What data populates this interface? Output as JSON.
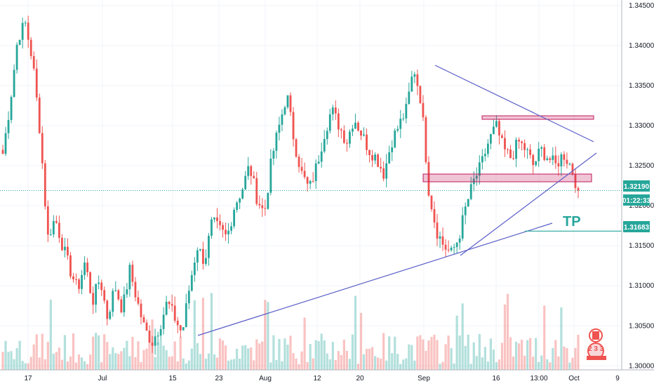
{
  "chart_data": {
    "type": "candlestick",
    "symbol_pair_flags": [
      "CA",
      "US"
    ],
    "y_axis": {
      "position": "right",
      "ylim": [
        1.2995,
        1.3457
      ],
      "ticks": [
        "1.34500",
        "1.34000",
        "1.33500",
        "1.33000",
        "1.32500",
        "1.32000",
        "1.31500",
        "1.31000",
        "1.30500",
        "1.30000"
      ]
    },
    "x_axis": {
      "ticks": [
        "17",
        "Jul",
        "15",
        "23",
        "Aug",
        "12",
        "20",
        "Sep",
        "16",
        "13:00",
        "Oct",
        "9"
      ]
    },
    "current_price": {
      "label": "1.32190",
      "value": 1.3219,
      "color": "#26a69a"
    },
    "countdown": {
      "label": "01:22:33",
      "color": "#26a69a"
    },
    "tp_level": {
      "label": "1.31683",
      "value": 1.31683,
      "text": "TP",
      "color": "#26a69a"
    },
    "colors": {
      "up": "#26a69a",
      "down": "#ef5350",
      "trendline": "#5b5fc7",
      "zone": "#c2185b"
    },
    "trendlines": [
      {
        "name": "upper-descending",
        "from": [
          1.3373
        ],
        "to": [
          1.3277
        ]
      },
      {
        "name": "lower-ascending-long",
        "from": [
          1.3025
        ],
        "to": [
          1.3169
        ]
      },
      {
        "name": "lower-ascending-short",
        "from": [
          1.3132
        ],
        "to": [
          1.326
        ]
      }
    ],
    "zones": [
      {
        "name": "resistance-zone",
        "top": 1.3307,
        "bottom": 1.3304
      },
      {
        "name": "support-zone",
        "top": 1.3232,
        "bottom": 1.3223
      }
    ],
    "price_path": [
      1.3265,
      1.333,
      1.341,
      1.3428,
      1.338,
      1.329,
      1.316,
      1.3185,
      1.315,
      1.312,
      1.3095,
      1.313,
      1.308,
      1.311,
      1.306,
      1.31,
      1.307,
      1.312,
      1.308,
      1.3045,
      1.303,
      1.305,
      1.308,
      1.306,
      1.304,
      1.31,
      1.315,
      1.313,
      1.318,
      1.317,
      1.316,
      1.32,
      1.322,
      1.325,
      1.321,
      1.319,
      1.326,
      1.33,
      1.334,
      1.328,
      1.324,
      1.322,
      1.325,
      1.329,
      1.332,
      1.33,
      1.328,
      1.331,
      1.329,
      1.327,
      1.326,
      1.324,
      1.328,
      1.33,
      1.332,
      1.3373,
      1.333,
      1.322,
      1.317,
      1.315,
      1.314,
      1.316,
      1.32,
      1.323,
      1.325,
      1.328,
      1.33,
      1.327,
      1.326,
      1.328,
      1.327,
      1.325,
      1.327,
      1.326,
      1.325,
      1.3265,
      1.325,
      1.3219
    ]
  }
}
